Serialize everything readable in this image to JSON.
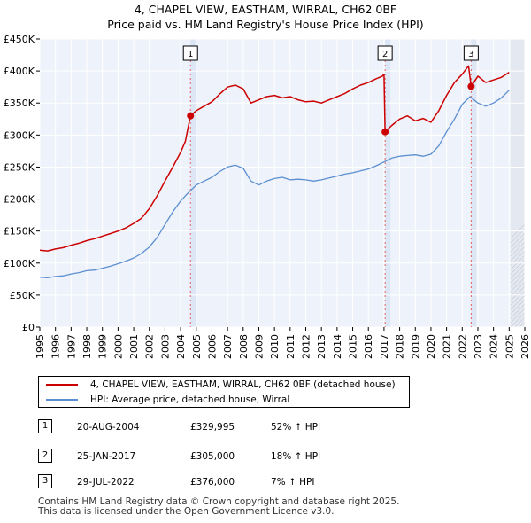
{
  "title": {
    "line1": "4, CHAPEL VIEW, EASTHAM, WIRRAL, CH62 0BF",
    "line2": "Price paid vs. HM Land Registry's House Price Index (HPI)"
  },
  "chart_data": {
    "type": "line",
    "title": "4, CHAPEL VIEW, EASTHAM, WIRRAL, CH62 0BF — Price paid vs. HM Land Registry's House Price Index (HPI)",
    "xlabel": "",
    "ylabel": "",
    "xlim": [
      1995,
      2026
    ],
    "ylim": [
      0,
      450000
    ],
    "x_ticks": [
      1995,
      1996,
      1997,
      1998,
      1999,
      2000,
      2001,
      2002,
      2003,
      2004,
      2005,
      2006,
      2007,
      2008,
      2009,
      2010,
      2011,
      2012,
      2013,
      2014,
      2015,
      2016,
      2017,
      2018,
      2019,
      2020,
      2021,
      2022,
      2023,
      2024,
      2025,
      2026
    ],
    "x_tick_labels": [
      "1995",
      "1996",
      "1997",
      "1998",
      "1999",
      "2000",
      "2001",
      "2002",
      "2003",
      "2004",
      "2005",
      "2006",
      "2007",
      "2008",
      "2009",
      "2010",
      "2011",
      "2012",
      "2013",
      "2014",
      "2015",
      "2016",
      "2017",
      "2018",
      "2019",
      "2020",
      "2021",
      "2022",
      "2023",
      "2024",
      "2025",
      "2026"
    ],
    "y_ticks": [
      0,
      50000,
      100000,
      150000,
      200000,
      250000,
      300000,
      350000,
      400000,
      450000
    ],
    "y_tick_labels": [
      "£0",
      "£50K",
      "£100K",
      "£150K",
      "£200K",
      "£250K",
      "£300K",
      "£350K",
      "£400K",
      "£450K"
    ],
    "grid": true,
    "shaded_future_from": 2025.1,
    "series": [
      {
        "name": "4, CHAPEL VIEW, EASTHAM, WIRRAL, CH62 0BF (detached house)",
        "color": "#cc0000",
        "x": [
          1995.0,
          1995.5,
          1996.0,
          1996.5,
          1997.0,
          1997.5,
          1998.0,
          1998.5,
          1999.0,
          1999.5,
          2000.0,
          2000.5,
          2001.0,
          2001.5,
          2002.0,
          2002.5,
          2003.0,
          2003.5,
          2004.0,
          2004.3,
          2004.63,
          2005.0,
          2005.5,
          2006.0,
          2006.5,
          2007.0,
          2007.5,
          2008.0,
          2008.5,
          2009.0,
          2009.5,
          2010.0,
          2010.5,
          2011.0,
          2011.5,
          2012.0,
          2012.5,
          2013.0,
          2013.5,
          2014.0,
          2014.5,
          2015.0,
          2015.5,
          2016.0,
          2016.5,
          2016.9,
          2017.0,
          2017.07,
          2017.5,
          2018.0,
          2018.5,
          2019.0,
          2019.5,
          2020.0,
          2020.5,
          2021.0,
          2021.5,
          2022.0,
          2022.4,
          2022.57,
          2023.0,
          2023.5,
          2024.0,
          2024.5,
          2025.0
        ],
        "y": [
          120000,
          119000,
          122000,
          124000,
          128000,
          131000,
          135000,
          138000,
          142000,
          146000,
          150000,
          155000,
          162000,
          170000,
          185000,
          205000,
          228000,
          250000,
          273000,
          290000,
          329995,
          338000,
          345000,
          352000,
          364000,
          375000,
          378000,
          372000,
          350000,
          355000,
          360000,
          362000,
          358000,
          360000,
          355000,
          352000,
          353000,
          350000,
          355000,
          360000,
          365000,
          372000,
          378000,
          382000,
          388000,
          392000,
          395000,
          305000,
          315000,
          325000,
          330000,
          322000,
          326000,
          320000,
          338000,
          362000,
          382000,
          395000,
          408000,
          376000,
          392000,
          382000,
          386000,
          390000,
          398000
        ]
      },
      {
        "name": "HPI: Average price, detached house, Wirral",
        "color": "#5b8fd1",
        "x": [
          1995.0,
          1995.5,
          1996.0,
          1996.5,
          1997.0,
          1997.5,
          1998.0,
          1998.5,
          1999.0,
          1999.5,
          2000.0,
          2000.5,
          2001.0,
          2001.5,
          2002.0,
          2002.5,
          2003.0,
          2003.5,
          2004.0,
          2004.5,
          2005.0,
          2005.5,
          2006.0,
          2006.5,
          2007.0,
          2007.5,
          2008.0,
          2008.5,
          2009.0,
          2009.5,
          2010.0,
          2010.5,
          2011.0,
          2011.5,
          2012.0,
          2012.5,
          2013.0,
          2013.5,
          2014.0,
          2014.5,
          2015.0,
          2015.5,
          2016.0,
          2016.5,
          2017.0,
          2017.5,
          2018.0,
          2018.5,
          2019.0,
          2019.5,
          2020.0,
          2020.5,
          2021.0,
          2021.5,
          2022.0,
          2022.5,
          2023.0,
          2023.5,
          2024.0,
          2024.5,
          2025.0
        ],
        "y": [
          78000,
          77000,
          79000,
          80000,
          83000,
          85000,
          88000,
          89000,
          92000,
          95000,
          99000,
          103000,
          108000,
          115000,
          125000,
          140000,
          160000,
          180000,
          197000,
          210000,
          222000,
          228000,
          234000,
          243000,
          250000,
          253000,
          248000,
          228000,
          222000,
          228000,
          232000,
          234000,
          230000,
          231000,
          230000,
          228000,
          230000,
          233000,
          236000,
          239000,
          241000,
          244000,
          247000,
          252000,
          258000,
          264000,
          267000,
          268000,
          269000,
          267000,
          270000,
          283000,
          305000,
          325000,
          348000,
          360000,
          350000,
          345000,
          350000,
          358000,
          370000
        ]
      }
    ],
    "transactions": [
      {
        "label": "1",
        "date": "20-AUG-2004",
        "x": 2004.63,
        "price": 329995,
        "price_label": "£329,995",
        "hpi_label": "52% ↑ HPI"
      },
      {
        "label": "2",
        "date": "25-JAN-2017",
        "x": 2017.07,
        "price": 305000,
        "price_label": "£305,000",
        "hpi_label": "18% ↑ HPI"
      },
      {
        "label": "3",
        "date": "29-JUL-2022",
        "x": 2022.57,
        "price": 376000,
        "price_label": "£376,000",
        "hpi_label": "7% ↑ HPI"
      }
    ]
  },
  "legend": {
    "property_label": "4, CHAPEL VIEW, EASTHAM, WIRRAL, CH62 0BF (detached house)",
    "hpi_label": "HPI: Average price, detached house, Wirral"
  },
  "footer": {
    "line1": "Contains HM Land Registry data © Crown copyright and database right 2025.",
    "line2": "This data is licensed under the Open Government Licence v3.0."
  }
}
